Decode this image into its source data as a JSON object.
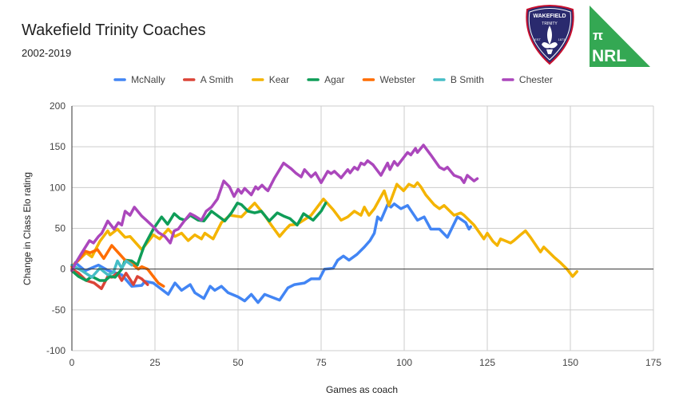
{
  "chart_data": {
    "type": "line",
    "title": "Wakefield Trinity Coaches",
    "subtitle": "2002-2019",
    "xlabel": "Games as coach",
    "ylabel": "Change in Class Elo rating",
    "xlim": [
      0,
      175
    ],
    "ylim": [
      -100,
      200
    ],
    "xticks": [
      "0",
      "25",
      "50",
      "75",
      "100",
      "125",
      "150",
      "175"
    ],
    "yticks": [
      "200",
      "150",
      "100",
      "50",
      "0",
      "-50",
      "-100"
    ],
    "grid": true,
    "legend_position": "top",
    "series": [
      {
        "name": "McNally",
        "color": "#4285F4",
        "points": [
          [
            0,
            0
          ],
          [
            1,
            8
          ],
          [
            4,
            -2
          ],
          [
            8,
            5
          ],
          [
            11,
            -2
          ],
          [
            15,
            -7
          ],
          [
            18,
            -21
          ],
          [
            21,
            -20
          ],
          [
            22,
            -15
          ],
          [
            24.5,
            -17
          ],
          [
            29,
            -31
          ],
          [
            31,
            -17
          ],
          [
            33,
            -26
          ],
          [
            35.6,
            -19
          ],
          [
            37,
            -29
          ],
          [
            39.7,
            -36
          ],
          [
            41.6,
            -21
          ],
          [
            43,
            -26
          ],
          [
            45,
            -21
          ],
          [
            47,
            -29
          ],
          [
            50,
            -34
          ],
          [
            52,
            -39
          ],
          [
            54,
            -31
          ],
          [
            56,
            -41
          ],
          [
            58,
            -31
          ],
          [
            62.5,
            -38
          ],
          [
            65,
            -23
          ],
          [
            67,
            -19
          ],
          [
            70,
            -17
          ],
          [
            72,
            -12
          ],
          [
            74.5,
            -12
          ],
          [
            76,
            0
          ],
          [
            78.6,
            1
          ],
          [
            80,
            11
          ],
          [
            81.7,
            16
          ],
          [
            83.4,
            11
          ],
          [
            85.8,
            18
          ],
          [
            88,
            27
          ],
          [
            89.7,
            35
          ],
          [
            91,
            44
          ],
          [
            92,
            64
          ],
          [
            93,
            60
          ],
          [
            95,
            79
          ],
          [
            96,
            76
          ],
          [
            97,
            80
          ],
          [
            99,
            74
          ],
          [
            101,
            78
          ],
          [
            104,
            60
          ],
          [
            106,
            64
          ],
          [
            108,
            49
          ],
          [
            110.6,
            49
          ],
          [
            113,
            39
          ],
          [
            116,
            64
          ],
          [
            118.5,
            57
          ],
          [
            119.5,
            49
          ],
          [
            120,
            52
          ]
        ]
      },
      {
        "name": "A Smith",
        "color": "#DB4437",
        "points": [
          [
            0,
            0
          ],
          [
            2,
            -5
          ],
          [
            4.3,
            -14
          ],
          [
            6.7,
            -17
          ],
          [
            8.9,
            -24
          ],
          [
            10.8,
            -9
          ],
          [
            12,
            -10
          ],
          [
            13.7,
            -5
          ],
          [
            15,
            -14
          ],
          [
            16.3,
            -5
          ],
          [
            18.5,
            -19
          ],
          [
            19.7,
            -9
          ],
          [
            21,
            -12
          ],
          [
            22.8,
            -19
          ]
        ]
      },
      {
        "name": "Kear",
        "color": "#F4B400",
        "points": [
          [
            0,
            3
          ],
          [
            2,
            11
          ],
          [
            4.3,
            20
          ],
          [
            6,
            15
          ],
          [
            8.4,
            34
          ],
          [
            10.8,
            47
          ],
          [
            11.5,
            42
          ],
          [
            13.7,
            49
          ],
          [
            16,
            39
          ],
          [
            17.5,
            40
          ],
          [
            21,
            24
          ],
          [
            23,
            34
          ],
          [
            24.5,
            42
          ],
          [
            26.4,
            37
          ],
          [
            29,
            49
          ],
          [
            31,
            40
          ],
          [
            33,
            44
          ],
          [
            35,
            35
          ],
          [
            37,
            42
          ],
          [
            39,
            37
          ],
          [
            40,
            44
          ],
          [
            42.5,
            37
          ],
          [
            45,
            57
          ],
          [
            47.6,
            66
          ],
          [
            51,
            64
          ],
          [
            55,
            81
          ],
          [
            58,
            66
          ],
          [
            60,
            54
          ],
          [
            62.5,
            40
          ],
          [
            64.4,
            49
          ],
          [
            65.6,
            54
          ],
          [
            67.8,
            55
          ],
          [
            69.7,
            60
          ],
          [
            72,
            66
          ],
          [
            75.7,
            86
          ],
          [
            78.6,
            73
          ],
          [
            81,
            60
          ],
          [
            83,
            64
          ],
          [
            85,
            71
          ],
          [
            87,
            66
          ],
          [
            88,
            76
          ],
          [
            89.4,
            66
          ],
          [
            91,
            74
          ],
          [
            94,
            96
          ],
          [
            95.4,
            78
          ],
          [
            97.8,
            104
          ],
          [
            99.8,
            96
          ],
          [
            101.4,
            104
          ],
          [
            103,
            101
          ],
          [
            104,
            106
          ],
          [
            105,
            101
          ],
          [
            106.5,
            91
          ],
          [
            109,
            79
          ],
          [
            110.6,
            74
          ],
          [
            112,
            78
          ],
          [
            115,
            66
          ],
          [
            117,
            69
          ],
          [
            118,
            66
          ],
          [
            121,
            54
          ],
          [
            124,
            37
          ],
          [
            125,
            44
          ],
          [
            126.7,
            34
          ],
          [
            128,
            29
          ],
          [
            129,
            37
          ],
          [
            132,
            32
          ],
          [
            133,
            35
          ],
          [
            135,
            42
          ],
          [
            136.5,
            47
          ],
          [
            138,
            39
          ],
          [
            141,
            21
          ],
          [
            142,
            27
          ],
          [
            145,
            15
          ],
          [
            147,
            8
          ],
          [
            149,
            0
          ],
          [
            150.7,
            -9
          ],
          [
            152,
            -3
          ]
        ]
      },
      {
        "name": "Agar",
        "color": "#0F9D58",
        "points": [
          [
            0,
            -2
          ],
          [
            2,
            -9
          ],
          [
            4.3,
            -14
          ],
          [
            6,
            -9
          ],
          [
            8.4,
            -14
          ],
          [
            10,
            -14
          ],
          [
            11.5,
            -9
          ],
          [
            13,
            -10
          ],
          [
            15,
            0
          ],
          [
            16,
            11
          ],
          [
            18,
            10
          ],
          [
            19.7,
            5
          ],
          [
            21.6,
            27
          ],
          [
            24.5,
            49
          ],
          [
            27,
            64
          ],
          [
            28.8,
            55
          ],
          [
            30.8,
            68
          ],
          [
            32.5,
            62
          ],
          [
            34,
            60
          ],
          [
            35.6,
            66
          ],
          [
            38,
            60
          ],
          [
            39.7,
            59
          ],
          [
            42,
            71
          ],
          [
            44,
            65
          ],
          [
            46,
            59
          ],
          [
            48,
            69
          ],
          [
            49.8,
            81
          ],
          [
            51,
            79
          ],
          [
            53,
            71
          ],
          [
            55,
            69
          ],
          [
            57,
            71
          ],
          [
            59.4,
            59
          ],
          [
            61.8,
            69
          ],
          [
            63.7,
            65
          ],
          [
            65.6,
            62
          ],
          [
            67.8,
            54
          ],
          [
            69.7,
            68
          ],
          [
            72.6,
            60
          ],
          [
            75,
            71
          ],
          [
            76.4,
            81
          ]
        ]
      },
      {
        "name": "Webster",
        "color": "#FF6D00",
        "points": [
          [
            0,
            3
          ],
          [
            2,
            11
          ],
          [
            4,
            22
          ],
          [
            5.5,
            20
          ],
          [
            7.7,
            24
          ],
          [
            9.6,
            13
          ],
          [
            12,
            29
          ],
          [
            14,
            20
          ],
          [
            16,
            11
          ],
          [
            18.5,
            5
          ],
          [
            20,
            0
          ],
          [
            21,
            3
          ],
          [
            22.8,
            0
          ],
          [
            24.5,
            -9
          ],
          [
            26,
            -17
          ],
          [
            27.6,
            -21
          ]
        ]
      },
      {
        "name": "B Smith",
        "color": "#46BDC6",
        "points": [
          [
            0,
            5
          ],
          [
            3,
            -2
          ],
          [
            6,
            -10
          ],
          [
            8.4,
            1
          ],
          [
            10.8,
            -7
          ],
          [
            12.5,
            -4
          ],
          [
            13.7,
            10
          ],
          [
            15,
            1
          ],
          [
            16.3,
            10
          ],
          [
            18,
            5
          ]
        ]
      },
      {
        "name": "Chester",
        "color": "#AB47BC",
        "points": [
          [
            0,
            -2
          ],
          [
            1.2,
            8
          ],
          [
            3,
            20
          ],
          [
            5.3,
            35
          ],
          [
            6.5,
            32
          ],
          [
            8,
            40
          ],
          [
            9,
            44
          ],
          [
            10.8,
            59
          ],
          [
            12.7,
            49
          ],
          [
            14,
            57
          ],
          [
            15,
            54
          ],
          [
            16,
            71
          ],
          [
            17.5,
            66
          ],
          [
            18.8,
            76
          ],
          [
            21,
            65
          ],
          [
            22.4,
            60
          ],
          [
            24.5,
            52
          ],
          [
            26,
            45
          ],
          [
            28,
            40
          ],
          [
            29.6,
            32
          ],
          [
            30.8,
            47
          ],
          [
            32,
            49
          ],
          [
            34,
            60
          ],
          [
            35.6,
            68
          ],
          [
            37,
            65
          ],
          [
            39,
            60
          ],
          [
            40.4,
            71
          ],
          [
            42,
            76
          ],
          [
            43.8,
            86
          ],
          [
            45.7,
            108
          ],
          [
            47.4,
            101
          ],
          [
            48.8,
            89
          ],
          [
            50,
            98
          ],
          [
            51,
            93
          ],
          [
            52,
            99
          ],
          [
            54,
            91
          ],
          [
            55.3,
            101
          ],
          [
            56,
            98
          ],
          [
            57.2,
            103
          ],
          [
            58.4,
            98
          ],
          [
            59,
            96
          ],
          [
            61,
            112
          ],
          [
            63.7,
            130
          ],
          [
            66,
            123
          ],
          [
            67.3,
            118
          ],
          [
            69,
            113
          ],
          [
            70,
            122
          ],
          [
            72,
            113
          ],
          [
            73.3,
            118
          ],
          [
            75,
            106
          ],
          [
            77,
            120
          ],
          [
            78,
            117
          ],
          [
            79,
            120
          ],
          [
            81,
            112
          ],
          [
            83,
            122
          ],
          [
            83.7,
            118
          ],
          [
            85,
            125
          ],
          [
            86,
            122
          ],
          [
            87,
            130
          ],
          [
            88,
            128
          ],
          [
            89,
            133
          ],
          [
            90.6,
            128
          ],
          [
            93,
            115
          ],
          [
            95,
            130
          ],
          [
            95.7,
            122
          ],
          [
            97,
            132
          ],
          [
            98,
            127
          ],
          [
            101,
            143
          ],
          [
            102,
            140
          ],
          [
            103.4,
            148
          ],
          [
            104,
            143
          ],
          [
            105.8,
            152
          ],
          [
            108,
            140
          ],
          [
            110.6,
            125
          ],
          [
            112,
            122
          ],
          [
            113,
            125
          ],
          [
            115,
            115
          ],
          [
            117,
            112
          ],
          [
            118,
            106
          ],
          [
            119,
            115
          ],
          [
            121,
            108
          ],
          [
            122,
            111
          ]
        ]
      }
    ]
  },
  "logos": {
    "club": {
      "line1": "WAKEFIELD",
      "line2": "TRINITY",
      "left": "EST",
      "right": "1873",
      "color": "#2a2a6e"
    },
    "nrl": {
      "symbol": "π",
      "text": "NRL",
      "color": "#34a853"
    }
  }
}
